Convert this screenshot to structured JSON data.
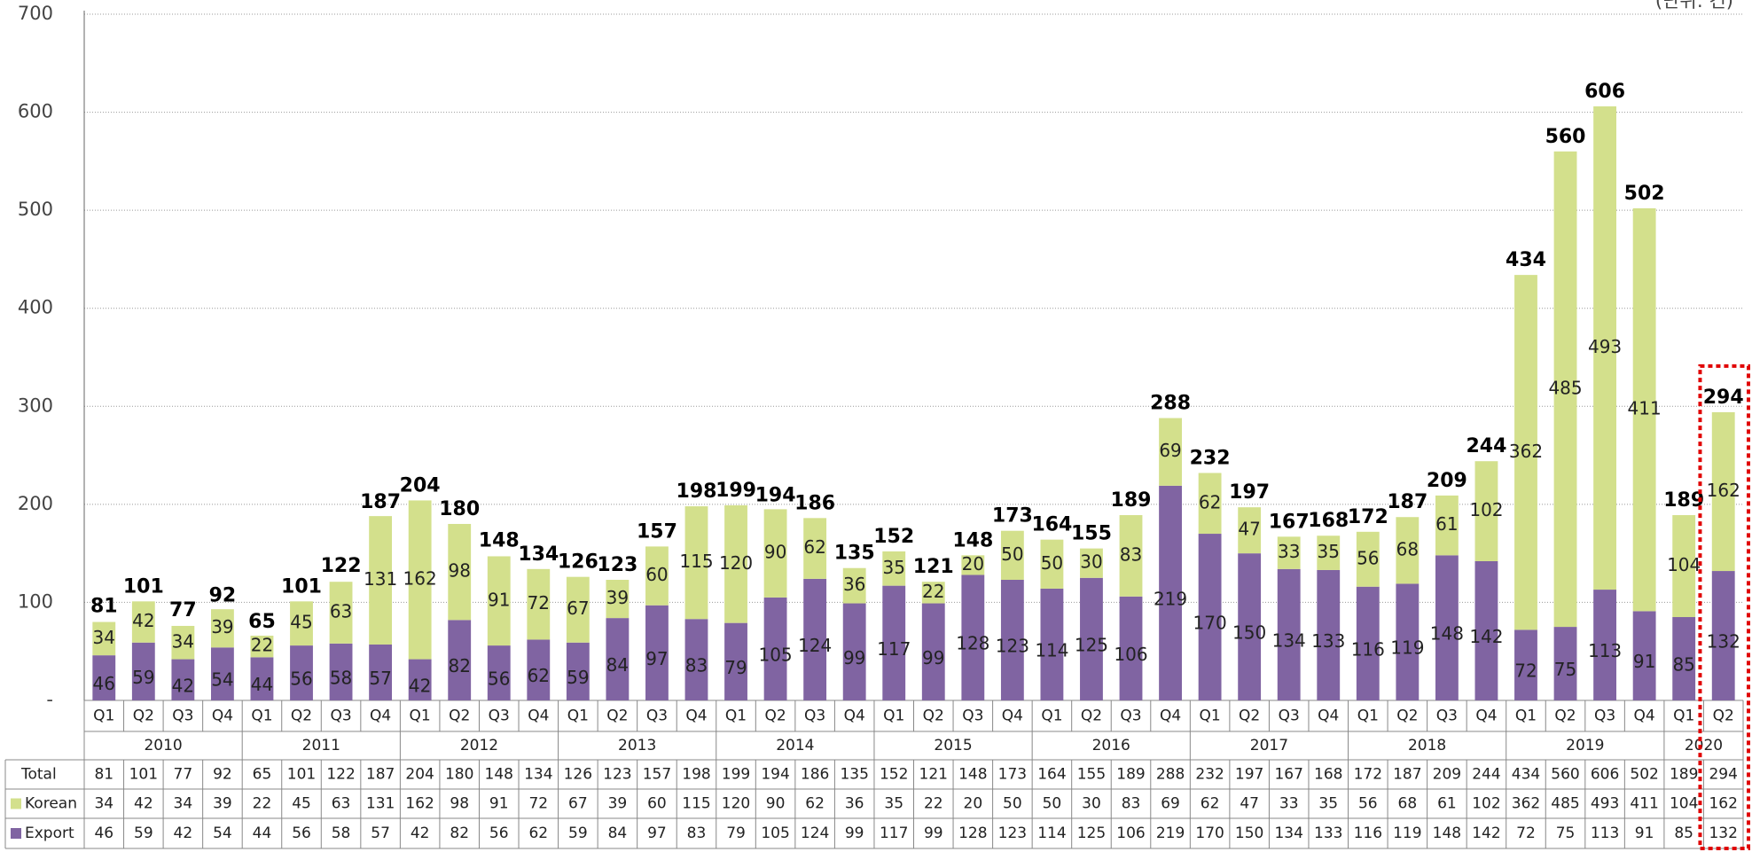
{
  "chart_data": {
    "type": "stacked_bar",
    "unit_note": "(단위: 건)",
    "categories": [
      "Q1",
      "Q2",
      "Q3",
      "Q4",
      "Q1",
      "Q2",
      "Q3",
      "Q4",
      "Q1",
      "Q2",
      "Q3",
      "Q4",
      "Q1",
      "Q2",
      "Q3",
      "Q4",
      "Q1",
      "Q2",
      "Q3",
      "Q4",
      "Q1",
      "Q2",
      "Q3",
      "Q4",
      "Q1",
      "Q2",
      "Q3",
      "Q4",
      "Q1",
      "Q2",
      "Q3",
      "Q4",
      "Q1",
      "Q2",
      "Q3",
      "Q4",
      "Q1",
      "Q2",
      "Q3",
      "Q4",
      "Q1",
      "Q2"
    ],
    "years": [
      "2010",
      "2011",
      "2012",
      "2013",
      "2014",
      "2015",
      "2016",
      "2017",
      "2018",
      "2019",
      "2020"
    ],
    "totals": {
      "name": "Total",
      "values": [
        81,
        101,
        77,
        92,
        65,
        101,
        122,
        187,
        204,
        180,
        148,
        134,
        126,
        123,
        157,
        198,
        199,
        194,
        186,
        135,
        152,
        121,
        148,
        173,
        164,
        155,
        189,
        288,
        232,
        197,
        167,
        168,
        172,
        187,
        209,
        244,
        434,
        560,
        606,
        502,
        189,
        294
      ]
    },
    "series": [
      {
        "name": "Korean",
        "color": "#d3e08c",
        "values": [
          34,
          42,
          34,
          39,
          22,
          45,
          63,
          131,
          162,
          98,
          91,
          72,
          67,
          39,
          60,
          115,
          120,
          90,
          62,
          36,
          35,
          22,
          20,
          50,
          50,
          30,
          83,
          69,
          62,
          47,
          33,
          35,
          56,
          68,
          61,
          102,
          362,
          485,
          493,
          411,
          104,
          162
        ]
      },
      {
        "name": "Export",
        "color": "#8064a2",
        "values": [
          46,
          59,
          42,
          54,
          44,
          56,
          58,
          57,
          42,
          82,
          56,
          62,
          59,
          84,
          97,
          83,
          79,
          105,
          124,
          99,
          117,
          99,
          128,
          123,
          114,
          125,
          106,
          219,
          170,
          150,
          134,
          133,
          116,
          119,
          148,
          142,
          72,
          75,
          113,
          91,
          85,
          132
        ]
      }
    ],
    "ylim": [
      0,
      700
    ],
    "yticks": [
      {
        "value": 0,
        "label": "-"
      },
      100,
      200,
      300,
      400,
      500,
      600,
      700
    ],
    "grid": true,
    "highlight_color": "#e00000"
  }
}
